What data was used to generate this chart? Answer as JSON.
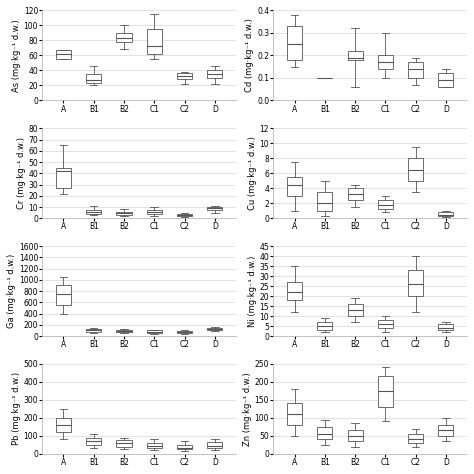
{
  "panels": [
    {
      "ylabel": "As (mg·kg⁻¹ d.w.)",
      "ylim": [
        0,
        120
      ],
      "yticks": [
        0,
        20,
        40,
        60,
        80,
        100,
        120
      ],
      "categories": [
        "A",
        "B1",
        "B2",
        "C1",
        "C2",
        "D"
      ],
      "boxes": [
        {
          "q1": 55,
          "median": 62,
          "q3": 67,
          "whislo": 55,
          "whishi": 67
        },
        {
          "q1": 23,
          "median": 27,
          "q3": 35,
          "whislo": 20,
          "whishi": 46
        },
        {
          "q1": 78,
          "median": 83,
          "q3": 90,
          "whislo": 68,
          "whishi": 100
        },
        {
          "q1": 62,
          "median": 72,
          "q3": 95,
          "whislo": 55,
          "whishi": 115
        },
        {
          "q1": 28,
          "median": 33,
          "q3": 36,
          "whislo": 22,
          "whishi": 38
        },
        {
          "q1": 30,
          "median": 35,
          "q3": 40,
          "whislo": 22,
          "whishi": 46
        }
      ]
    },
    {
      "ylabel": "Cd (mg·kg⁻¹ d.w.)",
      "ylim": [
        0,
        0.4
      ],
      "yticks": [
        0,
        0.1,
        0.2,
        0.3,
        0.4
      ],
      "categories": [
        "A",
        "B1",
        "B2",
        "C1",
        "C2",
        "D"
      ],
      "boxes": [
        {
          "q1": 0.18,
          "median": 0.25,
          "q3": 0.33,
          "whislo": 0.15,
          "whishi": 0.38
        },
        {
          "q1": 0.1,
          "median": 0.1,
          "q3": 0.1,
          "whislo": 0.1,
          "whishi": 0.1
        },
        {
          "q1": 0.18,
          "median": 0.19,
          "q3": 0.22,
          "whislo": 0.06,
          "whishi": 0.32
        },
        {
          "q1": 0.14,
          "median": 0.17,
          "q3": 0.2,
          "whislo": 0.1,
          "whishi": 0.3
        },
        {
          "q1": 0.1,
          "median": 0.14,
          "q3": 0.17,
          "whislo": 0.07,
          "whishi": 0.19
        },
        {
          "q1": 0.06,
          "median": 0.09,
          "q3": 0.12,
          "whislo": 0.06,
          "whishi": 0.14
        }
      ]
    },
    {
      "ylabel": "Cr (mg·kg⁻¹ d.w.)",
      "ylim": [
        0,
        80
      ],
      "yticks": [
        0,
        10,
        20,
        30,
        40,
        50,
        60,
        70,
        80
      ],
      "categories": [
        "A",
        "B1",
        "B2",
        "C1",
        "C2",
        "D"
      ],
      "boxes": [
        {
          "q1": 27,
          "median": 42,
          "q3": 45,
          "whislo": 22,
          "whishi": 65
        },
        {
          "q1": 4,
          "median": 5.5,
          "q3": 7,
          "whislo": 3,
          "whishi": 11
        },
        {
          "q1": 3,
          "median": 5,
          "q3": 6,
          "whislo": 2,
          "whishi": 8
        },
        {
          "q1": 4,
          "median": 6,
          "q3": 7.5,
          "whislo": 2,
          "whishi": 10
        },
        {
          "q1": 2,
          "median": 3,
          "q3": 4,
          "whislo": 1,
          "whishi": 5
        },
        {
          "q1": 7,
          "median": 9,
          "q3": 10,
          "whislo": 5,
          "whishi": 11
        }
      ]
    },
    {
      "ylabel": "Cu (mg·kg⁻¹ d.w.)",
      "ylim": [
        0,
        12
      ],
      "yticks": [
        0,
        2,
        4,
        6,
        8,
        10,
        12
      ],
      "categories": [
        "A",
        "B1",
        "B2",
        "C1",
        "C2",
        "D"
      ],
      "boxes": [
        {
          "q1": 3.0,
          "median": 4.5,
          "q3": 5.5,
          "whislo": 1.0,
          "whishi": 7.5
        },
        {
          "q1": 1.0,
          "median": 2.0,
          "q3": 3.5,
          "whislo": 0.3,
          "whishi": 5.0
        },
        {
          "q1": 2.5,
          "median": 3.2,
          "q3": 4.0,
          "whislo": 1.5,
          "whishi": 4.5
        },
        {
          "q1": 1.2,
          "median": 1.8,
          "q3": 2.5,
          "whislo": 0.8,
          "whishi": 3.0
        },
        {
          "q1": 5.0,
          "median": 6.5,
          "q3": 8.0,
          "whislo": 3.5,
          "whishi": 9.5
        },
        {
          "q1": 0.3,
          "median": 0.5,
          "q3": 0.8,
          "whislo": 0.2,
          "whishi": 1.0
        }
      ]
    },
    {
      "ylabel": "Ga (mg·kg⁻¹ d.w.)",
      "ylim": [
        0,
        1600
      ],
      "yticks": [
        0,
        200,
        400,
        600,
        800,
        1000,
        1200,
        1400,
        1600
      ],
      "categories": [
        "A",
        "B1",
        "B2",
        "C1",
        "C2",
        "D"
      ],
      "boxes": [
        {
          "q1": 550,
          "median": 750,
          "q3": 900,
          "whislo": 400,
          "whishi": 1050
        },
        {
          "q1": 80,
          "median": 100,
          "q3": 120,
          "whislo": 60,
          "whishi": 140
        },
        {
          "q1": 70,
          "median": 90,
          "q3": 110,
          "whislo": 50,
          "whishi": 125
        },
        {
          "q1": 60,
          "median": 80,
          "q3": 100,
          "whislo": 40,
          "whishi": 110
        },
        {
          "q1": 55,
          "median": 70,
          "q3": 90,
          "whislo": 35,
          "whishi": 100
        },
        {
          "q1": 110,
          "median": 130,
          "q3": 150,
          "whislo": 90,
          "whishi": 170
        }
      ]
    },
    {
      "ylabel": "Ni (mg·kg⁻¹ d.w.)",
      "ylim": [
        0,
        45
      ],
      "yticks": [
        0,
        5,
        10,
        15,
        20,
        25,
        30,
        35,
        40,
        45
      ],
      "categories": [
        "A",
        "B1",
        "B2",
        "C1",
        "C2",
        "D"
      ],
      "boxes": [
        {
          "q1": 18,
          "median": 22,
          "q3": 27,
          "whislo": 12,
          "whishi": 35
        },
        {
          "q1": 3,
          "median": 5,
          "q3": 7,
          "whislo": 2,
          "whishi": 9
        },
        {
          "q1": 10,
          "median": 13,
          "q3": 16,
          "whislo": 7,
          "whishi": 19
        },
        {
          "q1": 4,
          "median": 6,
          "q3": 8,
          "whislo": 2,
          "whishi": 10
        },
        {
          "q1": 20,
          "median": 26,
          "q3": 33,
          "whislo": 12,
          "whishi": 40
        },
        {
          "q1": 3,
          "median": 4,
          "q3": 6,
          "whislo": 2,
          "whishi": 7
        }
      ]
    },
    {
      "ylabel": "Pb (mg·kg⁻¹ d.w.)",
      "ylim": [
        0,
        500
      ],
      "yticks": [
        0,
        100,
        200,
        300,
        400,
        500
      ],
      "categories": [
        "A",
        "B1",
        "B2",
        "C1",
        "C2",
        "D"
      ],
      "boxes": [
        {
          "q1": 120,
          "median": 160,
          "q3": 200,
          "whislo": 80,
          "whishi": 250
        },
        {
          "q1": 50,
          "median": 70,
          "q3": 90,
          "whislo": 30,
          "whishi": 110
        },
        {
          "q1": 40,
          "median": 60,
          "q3": 75,
          "whislo": 25,
          "whishi": 90
        },
        {
          "q1": 30,
          "median": 45,
          "q3": 60,
          "whislo": 20,
          "whishi": 80
        },
        {
          "q1": 25,
          "median": 35,
          "q3": 50,
          "whislo": 15,
          "whishi": 70
        },
        {
          "q1": 30,
          "median": 45,
          "q3": 65,
          "whislo": 20,
          "whishi": 85
        }
      ]
    },
    {
      "ylabel": "Zn (mg·kg⁻¹ d.w.)",
      "ylim": [
        0,
        250
      ],
      "yticks": [
        0,
        50,
        100,
        150,
        200,
        250
      ],
      "categories": [
        "A",
        "B1",
        "B2",
        "C1",
        "C2",
        "D"
      ],
      "boxes": [
        {
          "q1": 80,
          "median": 110,
          "q3": 140,
          "whislo": 50,
          "whishi": 180
        },
        {
          "q1": 40,
          "median": 55,
          "q3": 75,
          "whislo": 25,
          "whishi": 95
        },
        {
          "q1": 35,
          "median": 50,
          "q3": 65,
          "whislo": 20,
          "whishi": 85
        },
        {
          "q1": 130,
          "median": 175,
          "q3": 215,
          "whislo": 90,
          "whishi": 240
        },
        {
          "q1": 30,
          "median": 42,
          "q3": 55,
          "whislo": 18,
          "whishi": 70
        },
        {
          "q1": 50,
          "median": 65,
          "q3": 80,
          "whislo": 35,
          "whishi": 100
        }
      ]
    }
  ],
  "figure_background": "#ffffff",
  "box_color": "#ffffff",
  "box_edgecolor": "#555555",
  "median_color": "#555555",
  "whisker_color": "#555555",
  "cap_color": "#555555",
  "grid_color": "#cccccc",
  "fontsize_label": 6,
  "fontsize_tick": 5.5,
  "fontsize_cat": 5.5
}
